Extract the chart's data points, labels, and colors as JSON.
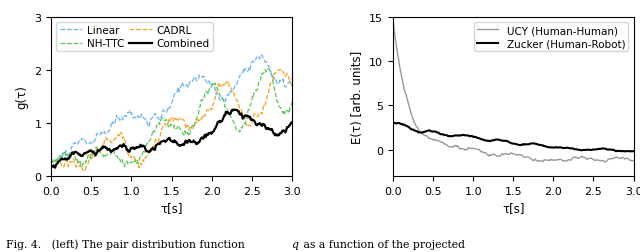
{
  "left_ylabel": "g(τ)",
  "left_xlabel": "τ[s]",
  "left_xlim": [
    0,
    3
  ],
  "left_ylim": [
    0,
    3
  ],
  "left_yticks": [
    0,
    1,
    2,
    3
  ],
  "right_ylabel": "E(τ) [arb. units]",
  "right_xlabel": "τ[s]",
  "right_xlim": [
    0,
    3
  ],
  "right_ylim": [
    -3,
    15
  ],
  "right_yticks": [
    0,
    5,
    10,
    15
  ],
  "colors_left": {
    "Linear": "#6ab4f5",
    "CADRL": "#f5a623",
    "NH-TTC": "#5cc85c",
    "Combined": "#000000"
  },
  "colors_right": {
    "UCY": "#999999",
    "Zucker": "#000000"
  }
}
